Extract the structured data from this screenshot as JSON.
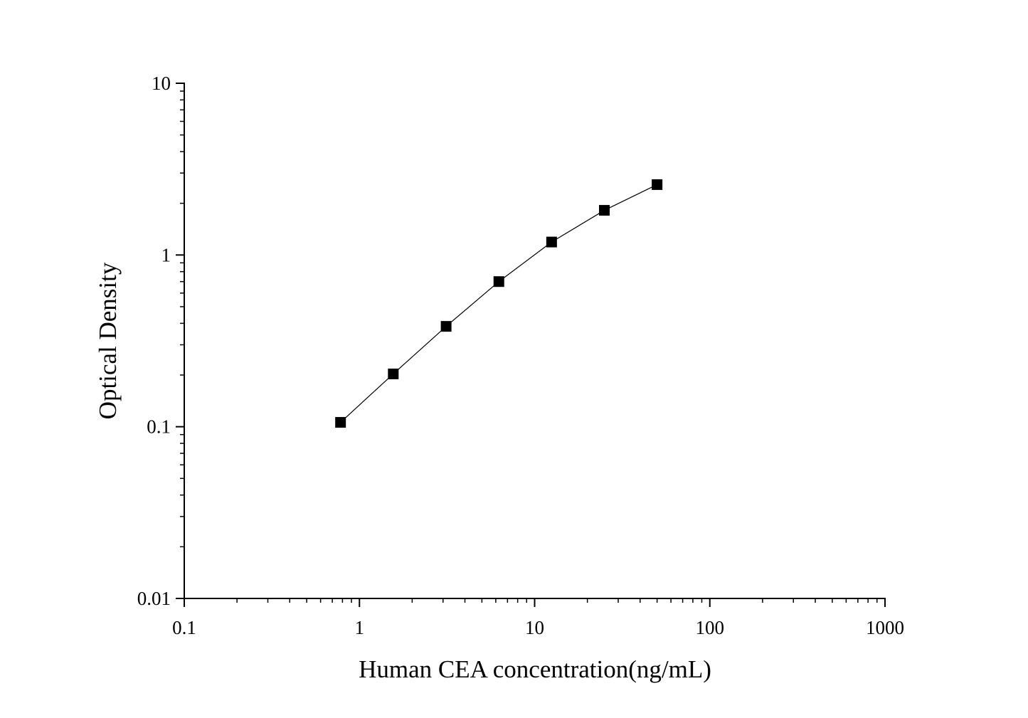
{
  "chart_data": {
    "type": "line",
    "title": "",
    "xlabel": "Human CEA concentration(ng/mL)",
    "ylabel": "Optical Density",
    "xscale": "log",
    "yscale": "log",
    "xlim": [
      0.1,
      1000
    ],
    "ylim": [
      0.01,
      10
    ],
    "x_ticks": [
      "0.1",
      "1",
      "10",
      "100",
      "1000"
    ],
    "y_ticks": [
      "0.01",
      "0.1",
      "1",
      "10"
    ],
    "grid": false,
    "legend": "none",
    "marker": "square",
    "color": "#000000",
    "series": [
      {
        "x": [
          0.78,
          1.56,
          3.125,
          6.25,
          12.5,
          25,
          50
        ],
        "y": [
          0.106,
          0.203,
          0.384,
          0.7,
          1.19,
          1.82,
          2.57
        ]
      }
    ]
  }
}
